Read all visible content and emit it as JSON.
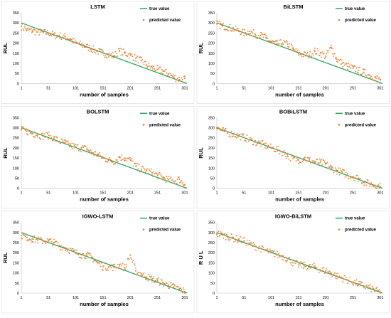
{
  "colors": {
    "true_line": "#2aa65a",
    "predicted_points": "#ed7d31"
  },
  "chart_data": [
    {
      "type": "scatter",
      "title": "LSTM",
      "xlabel": "number of samples",
      "ylabel": "RUL",
      "xlim": [
        1,
        305
      ],
      "ylim": [
        0,
        350
      ],
      "xticks": [
        "1",
        "51",
        "101",
        "151",
        "201",
        "251",
        "301"
      ],
      "yticks": [
        "0",
        "50",
        "100",
        "150",
        "200",
        "250",
        "300",
        "350"
      ],
      "legend": "top-right",
      "grid": false,
      "series": [
        {
          "name": "true value",
          "kind": "line",
          "x": [
            1,
            305
          ],
          "y": [
            300,
            0
          ]
        },
        {
          "name": "predicted value",
          "kind": "points",
          "x": [
            1,
            11,
            21,
            31,
            41,
            51,
            61,
            71,
            81,
            91,
            101,
            111,
            121,
            131,
            141,
            151,
            161,
            171,
            181,
            191,
            201,
            211,
            221,
            231,
            241,
            251,
            261,
            271,
            281,
            291,
            301
          ],
          "y": [
            282,
            265,
            262,
            255,
            252,
            250,
            238,
            236,
            232,
            220,
            200,
            192,
            182,
            170,
            160,
            150,
            142,
            138,
            160,
            150,
            140,
            125,
            112,
            92,
            78,
            70,
            62,
            48,
            32,
            20,
            25
          ]
        }
      ]
    },
    {
      "type": "scatter",
      "title": "BiLSTM",
      "xlabel": "number of samples",
      "ylabel": "RUL",
      "xlim": [
        1,
        305
      ],
      "ylim": [
        0,
        350
      ],
      "xticks": [
        "1",
        "51",
        "101",
        "151",
        "201",
        "251",
        "301"
      ],
      "yticks": [
        "0",
        "50",
        "100",
        "150",
        "200",
        "250",
        "300",
        "350"
      ],
      "legend": "top-right",
      "grid": false,
      "series": [
        {
          "name": "true value",
          "kind": "line",
          "x": [
            1,
            305
          ],
          "y": [
            300,
            0
          ]
        },
        {
          "name": "predicted value",
          "kind": "points",
          "x": [
            1,
            11,
            21,
            31,
            41,
            51,
            61,
            71,
            81,
            91,
            101,
            111,
            121,
            131,
            141,
            151,
            161,
            171,
            181,
            191,
            201,
            211,
            221,
            231,
            241,
            251,
            261,
            271,
            281,
            291,
            301
          ],
          "y": [
            295,
            285,
            280,
            270,
            262,
            250,
            258,
            245,
            238,
            226,
            205,
            196,
            200,
            195,
            170,
            148,
            142,
            140,
            160,
            150,
            135,
            178,
            120,
            100,
            85,
            75,
            65,
            55,
            40,
            30,
            20
          ]
        }
      ]
    },
    {
      "type": "scatter",
      "title": "BOLSTM",
      "xlabel": "number of samples",
      "ylabel": "RUL",
      "xlim": [
        1,
        305
      ],
      "ylim": [
        0,
        350
      ],
      "xticks": [
        "1",
        "51",
        "101",
        "151",
        "201",
        "251",
        "301"
      ],
      "yticks": [
        "0",
        "50",
        "100",
        "150",
        "200",
        "250",
        "300",
        "350"
      ],
      "legend": "top-right",
      "grid": false,
      "series": [
        {
          "name": "true value",
          "kind": "line",
          "x": [
            1,
            305
          ],
          "y": [
            300,
            0
          ]
        },
        {
          "name": "predicted value",
          "kind": "points",
          "x": [
            1,
            11,
            21,
            31,
            41,
            51,
            61,
            71,
            81,
            91,
            101,
            111,
            121,
            131,
            141,
            151,
            161,
            171,
            181,
            191,
            201,
            211,
            221,
            231,
            241,
            251,
            261,
            271,
            281,
            291,
            301
          ],
          "y": [
            290,
            282,
            272,
            265,
            258,
            262,
            248,
            232,
            225,
            212,
            205,
            200,
            195,
            176,
            168,
            150,
            140,
            132,
            155,
            150,
            140,
            110,
            95,
            88,
            78,
            65,
            52,
            42,
            35,
            45,
            18
          ]
        }
      ]
    },
    {
      "type": "scatter",
      "title": "BOBiLSTM",
      "xlabel": "number of samples",
      "ylabel": "RUL",
      "xlim": [
        1,
        305
      ],
      "ylim": [
        0,
        350
      ],
      "xticks": [
        "1",
        "51",
        "101",
        "151",
        "201",
        "251",
        "301"
      ],
      "yticks": [
        "0",
        "50",
        "100",
        "150",
        "200",
        "250",
        "300",
        "350"
      ],
      "legend": "top-right",
      "grid": false,
      "series": [
        {
          "name": "true value",
          "kind": "line",
          "x": [
            1,
            305
          ],
          "y": [
            300,
            0
          ]
        },
        {
          "name": "predicted value",
          "kind": "points",
          "x": [
            1,
            11,
            21,
            31,
            41,
            51,
            61,
            71,
            81,
            91,
            101,
            111,
            121,
            131,
            141,
            151,
            161,
            171,
            181,
            191,
            201,
            211,
            221,
            231,
            241,
            251,
            261,
            271,
            281,
            291,
            301
          ],
          "y": [
            300,
            285,
            275,
            268,
            260,
            252,
            240,
            228,
            222,
            210,
            200,
            192,
            180,
            160,
            148,
            140,
            150,
            140,
            130,
            128,
            120,
            100,
            88,
            80,
            65,
            58,
            50,
            30,
            22,
            15,
            8
          ]
        }
      ]
    },
    {
      "type": "scatter",
      "title": "IGWO-LSTM",
      "xlabel": "number of samples",
      "ylabel": "RUL",
      "xlim": [
        1,
        305
      ],
      "ylim": [
        0,
        350
      ],
      "xticks": [
        "1",
        "51",
        "101",
        "151",
        "201",
        "251",
        "301"
      ],
      "yticks": [
        "0",
        "50",
        "100",
        "150",
        "200",
        "250",
        "300",
        "350"
      ],
      "legend": "top-right",
      "grid": false,
      "series": [
        {
          "name": "true value",
          "kind": "line",
          "x": [
            1,
            305
          ],
          "y": [
            300,
            0
          ]
        },
        {
          "name": "predicted value",
          "kind": "points",
          "x": [
            1,
            11,
            21,
            31,
            41,
            51,
            61,
            71,
            81,
            91,
            101,
            111,
            121,
            131,
            141,
            151,
            161,
            171,
            181,
            191,
            201,
            211,
            221,
            231,
            241,
            251,
            261,
            271,
            281,
            291,
            301
          ],
          "y": [
            285,
            275,
            268,
            262,
            260,
            258,
            250,
            235,
            225,
            212,
            200,
            190,
            188,
            175,
            150,
            130,
            130,
            128,
            140,
            125,
            188,
            110,
            95,
            80,
            70,
            60,
            50,
            40,
            30,
            20,
            8
          ]
        }
      ]
    },
    {
      "type": "scatter",
      "title": "IGWO-BiLSTM",
      "xlabel": "number of samples",
      "ylabel": "R U L",
      "xlim": [
        1,
        305
      ],
      "ylim": [
        0,
        350
      ],
      "xticks": [
        "1",
        "51",
        "101",
        "151",
        "201",
        "251",
        "301"
      ],
      "yticks": [
        "0",
        "50",
        "100",
        "150",
        "200",
        "250",
        "300",
        "350"
      ],
      "legend": "top-right",
      "grid": false,
      "series": [
        {
          "name": "true value",
          "kind": "line",
          "x": [
            1,
            305
          ],
          "y": [
            300,
            0
          ]
        },
        {
          "name": "predicted value",
          "kind": "points",
          "x": [
            1,
            11,
            21,
            31,
            41,
            51,
            61,
            71,
            81,
            91,
            101,
            111,
            121,
            131,
            141,
            151,
            161,
            171,
            181,
            191,
            201,
            211,
            221,
            231,
            241,
            251,
            261,
            271,
            281,
            291,
            301
          ],
          "y": [
            295,
            288,
            280,
            272,
            265,
            258,
            245,
            232,
            222,
            210,
            200,
            192,
            182,
            170,
            150,
            140,
            135,
            128,
            130,
            115,
            110,
            98,
            85,
            75,
            65,
            55,
            45,
            35,
            25,
            15,
            5
          ]
        }
      ]
    }
  ]
}
